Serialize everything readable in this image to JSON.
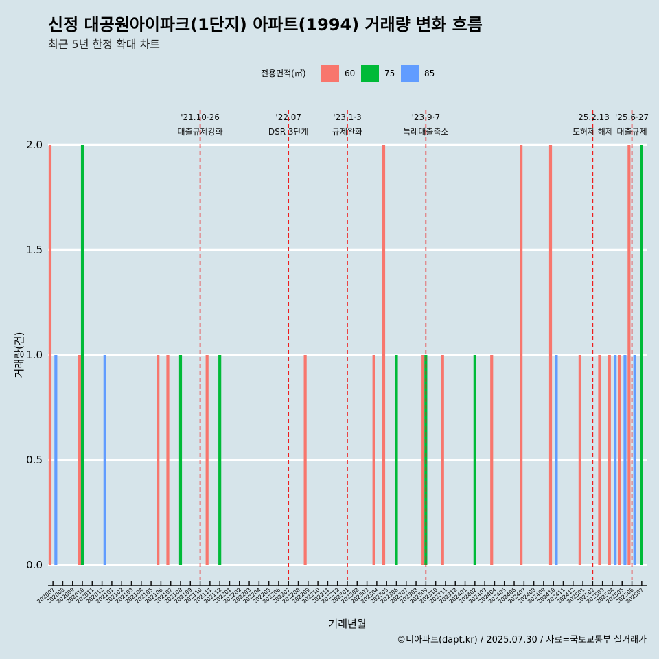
{
  "chart_data": {
    "type": "bar",
    "title": "신정 대공원아이파크(1단지) 아파트(1994) 거래량 변화 흐름",
    "subtitle": "최근 5년 한정 확대 차트",
    "xlabel": "거래년월",
    "ylabel": "거래량(건)",
    "ylim": [
      0,
      2
    ],
    "yticks": [
      "0.0",
      "0.5",
      "1.0",
      "1.5",
      "2.0"
    ],
    "legend": {
      "title": "전용면적(㎡)",
      "position": "top"
    },
    "categories": [
      "202007",
      "202008",
      "202009",
      "202010",
      "202011",
      "202012",
      "202101",
      "202102",
      "202103",
      "202104",
      "202105",
      "202106",
      "202107",
      "202108",
      "202109",
      "202110",
      "202111",
      "202112",
      "202201",
      "202202",
      "202203",
      "202204",
      "202205",
      "202206",
      "202207",
      "202208",
      "202209",
      "202210",
      "202211",
      "202212",
      "202301",
      "202302",
      "202303",
      "202304",
      "202305",
      "202306",
      "202307",
      "202308",
      "202309",
      "202310",
      "202311",
      "202312",
      "202401",
      "202402",
      "202403",
      "202404",
      "202405",
      "202406",
      "202407",
      "202408",
      "202409",
      "202410",
      "202411",
      "202412",
      "202501",
      "202502",
      "202503",
      "202504",
      "202505",
      "202506",
      "202507"
    ],
    "series": [
      {
        "name": "60",
        "color": "#f8766d",
        "values": [
          2,
          0,
          0,
          1,
          0,
          0,
          0,
          0,
          0,
          0,
          0,
          1,
          1,
          0,
          0,
          0,
          1,
          0,
          0,
          0,
          0,
          0,
          0,
          0,
          0,
          0,
          1,
          0,
          0,
          0,
          0,
          0,
          0,
          1,
          2,
          0,
          0,
          0,
          1,
          0,
          1,
          0,
          0,
          0,
          0,
          1,
          0,
          0,
          2,
          0,
          0,
          2,
          0,
          0,
          1,
          0,
          1,
          1,
          1,
          2,
          0
        ]
      },
      {
        "name": "75",
        "color": "#00ba38",
        "values": [
          0,
          0,
          0,
          2,
          0,
          0,
          0,
          0,
          0,
          0,
          0,
          0,
          0,
          1,
          0,
          0,
          0,
          1,
          0,
          0,
          0,
          0,
          0,
          0,
          0,
          0,
          0,
          0,
          0,
          0,
          0,
          0,
          0,
          0,
          0,
          1,
          0,
          0,
          1,
          0,
          0,
          0,
          0,
          1,
          0,
          0,
          0,
          0,
          0,
          0,
          0,
          0,
          0,
          0,
          0,
          0,
          0,
          0,
          0,
          0,
          2
        ]
      },
      {
        "name": "85",
        "color": "#619cff",
        "values": [
          1,
          0,
          0,
          0,
          0,
          1,
          0,
          0,
          0,
          0,
          0,
          0,
          0,
          0,
          0,
          0,
          0,
          0,
          0,
          0,
          0,
          0,
          0,
          0,
          0,
          0,
          0,
          0,
          0,
          0,
          0,
          0,
          0,
          0,
          0,
          0,
          0,
          0,
          0,
          0,
          0,
          0,
          0,
          0,
          0,
          0,
          0,
          0,
          0,
          0,
          0,
          1,
          0,
          0,
          0,
          0,
          0,
          1,
          1,
          1,
          0
        ]
      }
    ],
    "annotations": [
      {
        "x": "202110",
        "date": "'21.10·26",
        "label": "대출규제강화"
      },
      {
        "x": "202207",
        "date": "'22.07",
        "label": "DSR 3단계"
      },
      {
        "x": "202301",
        "date": "'23.1·3",
        "label": "규제완화"
      },
      {
        "x": "202309",
        "date": "'23.9·7",
        "label": "특례대출축소"
      },
      {
        "x": "202502",
        "date": "'25.2.13",
        "label": "토허제 해제"
      },
      {
        "x": "202506",
        "date": "'25.6·27",
        "label": "대출규제"
      }
    ],
    "caption": "©디아파트(dapt.kr) / 2025.07.30 / 자료=국토교통부 실거래가"
  }
}
